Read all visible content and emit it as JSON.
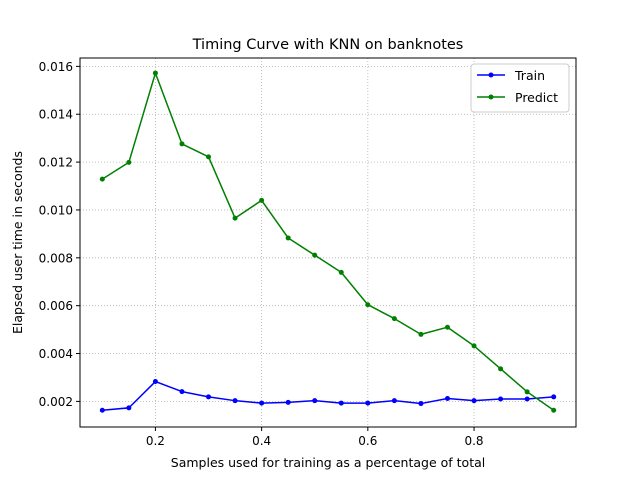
{
  "chart_data": {
    "type": "line",
    "title": "Timing Curve with KNN on banknotes",
    "xlabel": "Samples used for training as a percentage of total",
    "ylabel": "Elapsed user time in seconds",
    "xlim": [
      0.058,
      0.992
    ],
    "ylim": [
      0.00093,
      0.01635
    ],
    "xticks": [
      0.2,
      0.4,
      0.6,
      0.8
    ],
    "xtick_labels": [
      "0.2",
      "0.4",
      "0.6",
      "0.8"
    ],
    "yticks": [
      0.002,
      0.004,
      0.006,
      0.008,
      0.01,
      0.012,
      0.014,
      0.016
    ],
    "ytick_labels": [
      "0.002",
      "0.004",
      "0.006",
      "0.008",
      "0.010",
      "0.012",
      "0.014",
      "0.016"
    ],
    "grid": true,
    "legend_position": "top-right",
    "x": [
      0.1,
      0.15,
      0.2,
      0.25,
      0.3,
      0.35,
      0.4,
      0.45,
      0.5,
      0.55,
      0.6,
      0.65,
      0.7,
      0.75,
      0.8,
      0.85,
      0.9,
      0.95
    ],
    "series": [
      {
        "name": "Train",
        "color": "#0000ff",
        "values": [
          0.00163,
          0.00173,
          0.00283,
          0.00241,
          0.00219,
          0.00203,
          0.00193,
          0.00196,
          0.00203,
          0.00193,
          0.00193,
          0.00203,
          0.00191,
          0.00212,
          0.00203,
          0.0021,
          0.0021,
          0.00219
        ]
      },
      {
        "name": "Predict",
        "color": "#008000",
        "values": [
          0.01129,
          0.01199,
          0.01572,
          0.01276,
          0.01222,
          0.00966,
          0.0104,
          0.00883,
          0.00811,
          0.00739,
          0.00604,
          0.00546,
          0.0048,
          0.0051,
          0.00432,
          0.00336,
          0.0024,
          0.00163
        ]
      }
    ]
  }
}
